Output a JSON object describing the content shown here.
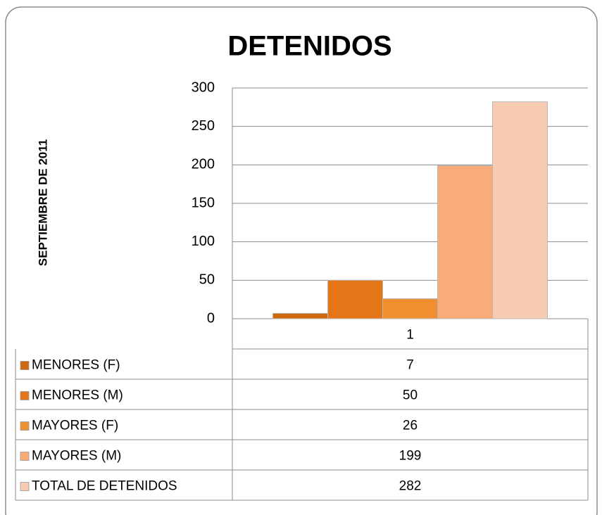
{
  "chart_data": {
    "type": "bar",
    "title": "DETENIDOS",
    "y_label": "SEPTIEMBRE DE 2011",
    "categories": [
      "1"
    ],
    "series": [
      {
        "name": "MENORES (F)",
        "color": "#d0680f",
        "values": [
          7
        ]
      },
      {
        "name": "MENORES (M)",
        "color": "#e57618",
        "values": [
          50
        ]
      },
      {
        "name": "MAYORES (F)",
        "color": "#ef8f30",
        "values": [
          26
        ]
      },
      {
        "name": "MAYORES (M)",
        "color": "#f9ac78",
        "values": [
          199
        ]
      },
      {
        "name": "TOTAL DE DETENIDOS",
        "color": "#f8cbb3",
        "values": [
          282
        ]
      }
    ],
    "ylim": [
      0,
      300
    ],
    "yticks": [
      0,
      50,
      100,
      150,
      200,
      250,
      300
    ],
    "grid": true
  }
}
